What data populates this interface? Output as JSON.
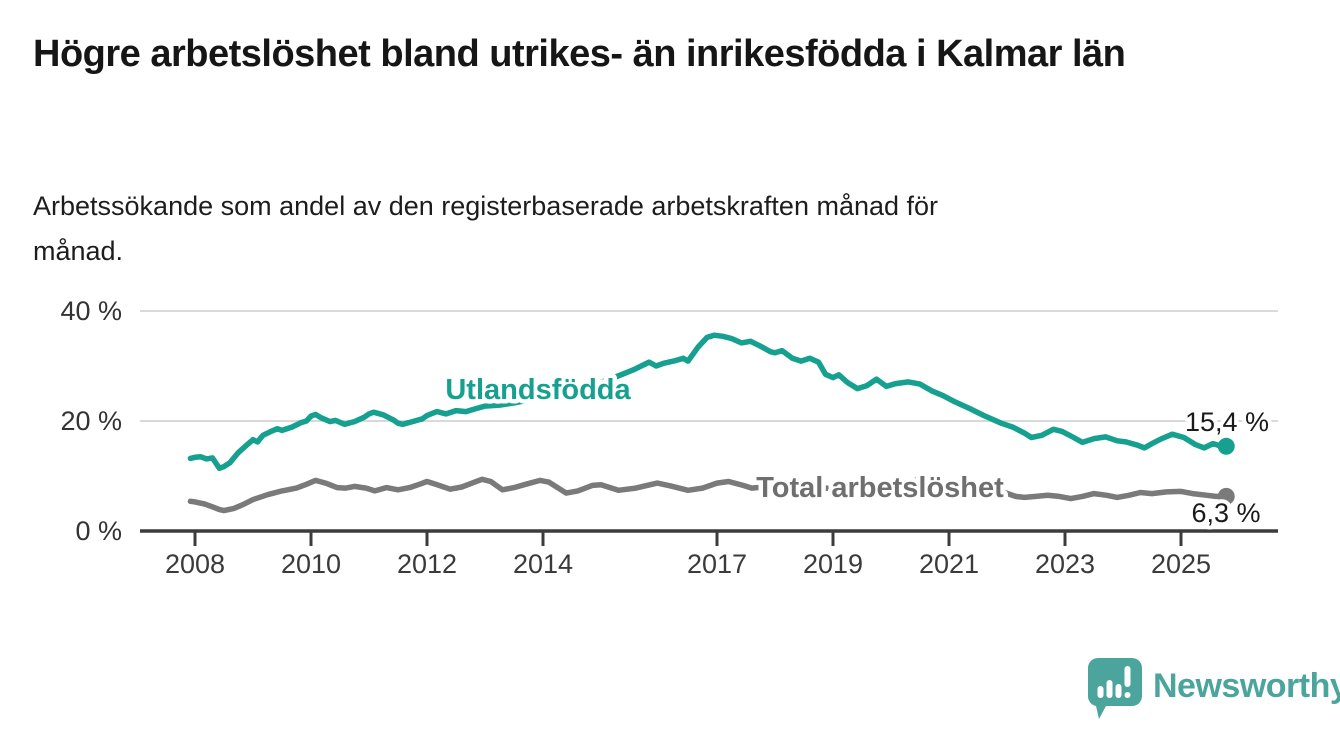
{
  "page": {
    "title": "Högre arbetslöshet bland utrikes- än inrikesfödda i Kalmar län",
    "title_lines": [
      "Högre arbetslöshet bland utrikes- än inrikesfödda i Kalmar",
      "län"
    ],
    "subtitle": "Arbetssökande som andel av den registerbaserade arbetskraften månad för månad.",
    "subtitle_lines": [
      "Arbetssökande som andel av den registerbaserade arbetskraften månad för",
      "månad."
    ]
  },
  "branding": {
    "logo_text": "Newsworthy",
    "logo_color": "#4ba59d",
    "logo_icon": "speech-bubble-bar-chart-exclamation"
  },
  "chart_data": {
    "type": "line",
    "title": "Högre arbetslöshet bland utrikes- än inrikesfödda i Kalmar län",
    "xlabel": "",
    "ylabel": "",
    "grid": "horizontal",
    "legend_position": "inline-labels-on-lines",
    "xlim": [
      2007.1,
      2026.7
    ],
    "ylim": [
      0,
      43
    ],
    "x_unit": "year (monthly observations)",
    "y_unit": "percent of labour force",
    "y_ticks": [
      {
        "label": "0 %",
        "value": 0
      },
      {
        "label": "20 %",
        "value": 20
      },
      {
        "label": "40 %",
        "value": 40
      }
    ],
    "x_ticks": [
      {
        "label": "2008",
        "year": 2008
      },
      {
        "label": "2010",
        "year": 2010
      },
      {
        "label": "2012",
        "year": 2012
      },
      {
        "label": "2014",
        "year": 2014
      },
      {
        "label": "2017",
        "year": 2017
      },
      {
        "label": "2019",
        "year": 2019
      },
      {
        "label": "2021",
        "year": 2021
      },
      {
        "label": "2023",
        "year": 2023
      },
      {
        "label": "2025",
        "year": 2025
      }
    ],
    "series": [
      {
        "id": "utlandsfodda",
        "name": "Utlandsfödda",
        "color": "#16a090",
        "end_label": "15,4 %",
        "end_value": 15.4,
        "points": [
          [
            2007.92,
            13.2
          ],
          [
            2008.0,
            13.4
          ],
          [
            2008.1,
            13.5
          ],
          [
            2008.2,
            13.1
          ],
          [
            2008.3,
            13.3
          ],
          [
            2008.42,
            11.4
          ],
          [
            2008.5,
            11.7
          ],
          [
            2008.6,
            12.4
          ],
          [
            2008.75,
            14.3
          ],
          [
            2008.92,
            15.9
          ],
          [
            2009.0,
            16.6
          ],
          [
            2009.08,
            16.2
          ],
          [
            2009.17,
            17.4
          ],
          [
            2009.33,
            18.2
          ],
          [
            2009.42,
            18.6
          ],
          [
            2009.5,
            18.3
          ],
          [
            2009.67,
            18.9
          ],
          [
            2009.83,
            19.7
          ],
          [
            2009.92,
            20.0
          ],
          [
            2010.0,
            20.9
          ],
          [
            2010.08,
            21.2
          ],
          [
            2010.17,
            20.6
          ],
          [
            2010.33,
            19.9
          ],
          [
            2010.42,
            20.1
          ],
          [
            2010.58,
            19.4
          ],
          [
            2010.75,
            19.9
          ],
          [
            2010.92,
            20.7
          ],
          [
            2011.0,
            21.3
          ],
          [
            2011.08,
            21.6
          ],
          [
            2011.25,
            21.1
          ],
          [
            2011.42,
            20.2
          ],
          [
            2011.5,
            19.6
          ],
          [
            2011.58,
            19.4
          ],
          [
            2011.75,
            19.9
          ],
          [
            2011.92,
            20.4
          ],
          [
            2012.0,
            21.0
          ],
          [
            2012.17,
            21.7
          ],
          [
            2012.33,
            21.3
          ],
          [
            2012.5,
            21.9
          ],
          [
            2012.67,
            21.7
          ],
          [
            2012.83,
            22.2
          ],
          [
            2013.0,
            22.7
          ],
          [
            2013.25,
            22.9
          ],
          [
            2013.5,
            23.3
          ],
          [
            2013.75,
            23.8
          ],
          [
            2014.0,
            24.4
          ],
          [
            2014.25,
            24.9
          ],
          [
            2014.5,
            25.4
          ],
          [
            2014.75,
            26.2
          ],
          [
            2015.0,
            27.0
          ],
          [
            2015.25,
            28.0
          ],
          [
            2015.42,
            28.7
          ],
          [
            2015.58,
            29.4
          ],
          [
            2015.83,
            30.7
          ],
          [
            2015.95,
            30.0
          ],
          [
            2016.08,
            30.5
          ],
          [
            2016.25,
            30.9
          ],
          [
            2016.42,
            31.4
          ],
          [
            2016.5,
            30.9
          ],
          [
            2016.67,
            33.4
          ],
          [
            2016.83,
            35.2
          ],
          [
            2016.95,
            35.6
          ],
          [
            2017.1,
            35.4
          ],
          [
            2017.25,
            35.0
          ],
          [
            2017.42,
            34.2
          ],
          [
            2017.58,
            34.5
          ],
          [
            2017.75,
            33.6
          ],
          [
            2017.92,
            32.6
          ],
          [
            2018.0,
            32.4
          ],
          [
            2018.12,
            32.8
          ],
          [
            2018.3,
            31.4
          ],
          [
            2018.45,
            30.9
          ],
          [
            2018.6,
            31.4
          ],
          [
            2018.75,
            30.7
          ],
          [
            2018.87,
            28.5
          ],
          [
            2019.0,
            27.9
          ],
          [
            2019.1,
            28.4
          ],
          [
            2019.25,
            27.0
          ],
          [
            2019.42,
            25.9
          ],
          [
            2019.58,
            26.4
          ],
          [
            2019.75,
            27.6
          ],
          [
            2019.92,
            26.3
          ],
          [
            2020.08,
            26.8
          ],
          [
            2020.3,
            27.1
          ],
          [
            2020.5,
            26.7
          ],
          [
            2020.7,
            25.5
          ],
          [
            2020.9,
            24.6
          ],
          [
            2021.1,
            23.5
          ],
          [
            2021.35,
            22.3
          ],
          [
            2021.6,
            21.0
          ],
          [
            2021.9,
            19.6
          ],
          [
            2022.1,
            18.9
          ],
          [
            2022.3,
            17.8
          ],
          [
            2022.42,
            17.0
          ],
          [
            2022.6,
            17.4
          ],
          [
            2022.8,
            18.5
          ],
          [
            2022.95,
            18.1
          ],
          [
            2023.15,
            17.0
          ],
          [
            2023.3,
            16.1
          ],
          [
            2023.5,
            16.8
          ],
          [
            2023.7,
            17.1
          ],
          [
            2023.9,
            16.4
          ],
          [
            2024.05,
            16.2
          ],
          [
            2024.25,
            15.6
          ],
          [
            2024.37,
            15.1
          ],
          [
            2024.5,
            15.9
          ],
          [
            2024.67,
            16.8
          ],
          [
            2024.85,
            17.6
          ],
          [
            2025.05,
            17.0
          ],
          [
            2025.25,
            15.7
          ],
          [
            2025.4,
            15.1
          ],
          [
            2025.55,
            15.9
          ],
          [
            2025.67,
            15.5
          ],
          [
            2025.78,
            15.4
          ]
        ]
      },
      {
        "id": "total-arbetsloshet",
        "name": "Total arbetslöshet",
        "color": "#7a7a7a",
        "label_color": "#6f6f6f",
        "end_label": "6,3 %",
        "end_value": 6.3,
        "points": [
          [
            2007.92,
            5.4
          ],
          [
            2008.0,
            5.3
          ],
          [
            2008.17,
            4.9
          ],
          [
            2008.3,
            4.4
          ],
          [
            2008.42,
            3.9
          ],
          [
            2008.5,
            3.7
          ],
          [
            2008.67,
            4.1
          ],
          [
            2008.83,
            4.8
          ],
          [
            2009.0,
            5.7
          ],
          [
            2009.25,
            6.6
          ],
          [
            2009.5,
            7.3
          ],
          [
            2009.75,
            7.8
          ],
          [
            2009.92,
            8.5
          ],
          [
            2010.08,
            9.2
          ],
          [
            2010.25,
            8.7
          ],
          [
            2010.45,
            7.9
          ],
          [
            2010.6,
            7.8
          ],
          [
            2010.75,
            8.1
          ],
          [
            2010.95,
            7.8
          ],
          [
            2011.1,
            7.3
          ],
          [
            2011.3,
            7.9
          ],
          [
            2011.5,
            7.5
          ],
          [
            2011.7,
            7.9
          ],
          [
            2011.9,
            8.6
          ],
          [
            2012.0,
            9.0
          ],
          [
            2012.15,
            8.5
          ],
          [
            2012.4,
            7.6
          ],
          [
            2012.6,
            8.0
          ],
          [
            2012.8,
            8.8
          ],
          [
            2012.95,
            9.4
          ],
          [
            2013.1,
            9.0
          ],
          [
            2013.3,
            7.5
          ],
          [
            2013.5,
            7.9
          ],
          [
            2013.7,
            8.5
          ],
          [
            2013.95,
            9.2
          ],
          [
            2014.1,
            8.9
          ],
          [
            2014.4,
            6.9
          ],
          [
            2014.6,
            7.3
          ],
          [
            2014.85,
            8.3
          ],
          [
            2015.0,
            8.4
          ],
          [
            2015.3,
            7.4
          ],
          [
            2015.6,
            7.8
          ],
          [
            2015.97,
            8.7
          ],
          [
            2016.2,
            8.2
          ],
          [
            2016.5,
            7.4
          ],
          [
            2016.75,
            7.8
          ],
          [
            2017.0,
            8.7
          ],
          [
            2017.2,
            9.0
          ],
          [
            2017.45,
            8.3
          ],
          [
            2017.6,
            7.8
          ],
          [
            2017.9,
            8.1
          ],
          [
            2018.1,
            8.3
          ],
          [
            2018.5,
            7.4
          ],
          [
            2018.9,
            7.8
          ],
          [
            2019.2,
            7.6
          ],
          [
            2019.5,
            7.2
          ],
          [
            2019.9,
            7.6
          ],
          [
            2020.2,
            8.6
          ],
          [
            2020.45,
            9.3
          ],
          [
            2020.7,
            9.0
          ],
          [
            2021.0,
            8.8
          ],
          [
            2021.3,
            8.3
          ],
          [
            2021.6,
            7.8
          ],
          [
            2021.9,
            7.2
          ],
          [
            2022.15,
            6.3
          ],
          [
            2022.3,
            6.1
          ],
          [
            2022.5,
            6.3
          ],
          [
            2022.7,
            6.5
          ],
          [
            2022.9,
            6.3
          ],
          [
            2023.1,
            5.9
          ],
          [
            2023.3,
            6.3
          ],
          [
            2023.5,
            6.8
          ],
          [
            2023.72,
            6.5
          ],
          [
            2023.9,
            6.1
          ],
          [
            2024.1,
            6.5
          ],
          [
            2024.3,
            7.0
          ],
          [
            2024.5,
            6.8
          ],
          [
            2024.75,
            7.1
          ],
          [
            2025.0,
            7.2
          ],
          [
            2025.2,
            6.8
          ],
          [
            2025.45,
            6.5
          ],
          [
            2025.6,
            6.3
          ],
          [
            2025.78,
            6.3
          ]
        ]
      }
    ]
  }
}
